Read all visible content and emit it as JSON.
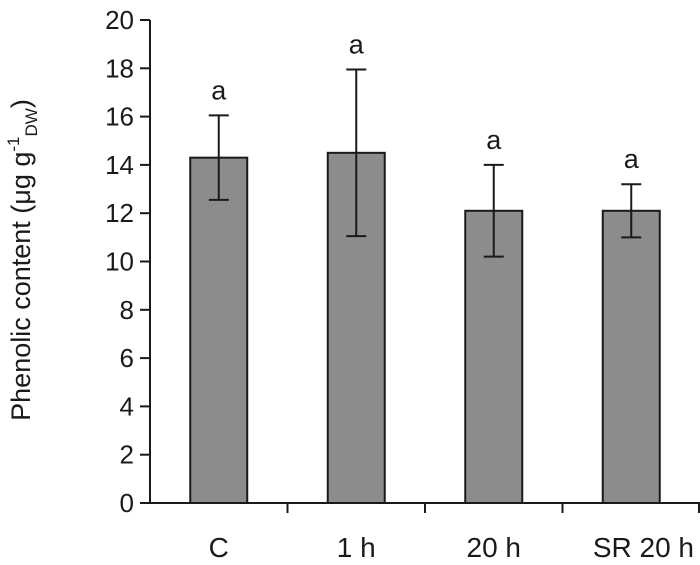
{
  "chart_data": {
    "type": "bar",
    "title": "",
    "xlabel": "",
    "ylabel": {
      "main": "Phenolic content (μg g",
      "sup": "-1",
      "sub": "DW",
      "close": ")"
    },
    "ylim": [
      0,
      20
    ],
    "yticks": [
      0,
      2,
      4,
      6,
      8,
      10,
      12,
      14,
      16,
      18,
      20
    ],
    "grid": false,
    "categories": [
      "C",
      "1 h",
      "20 h",
      "SR 20 h"
    ],
    "values": [
      14.3,
      14.5,
      12.1,
      12.1
    ],
    "errors": [
      1.75,
      3.45,
      1.9,
      1.1
    ],
    "significance": [
      "a",
      "a",
      "a",
      "a"
    ],
    "bar_color": "#8c8c8c"
  }
}
